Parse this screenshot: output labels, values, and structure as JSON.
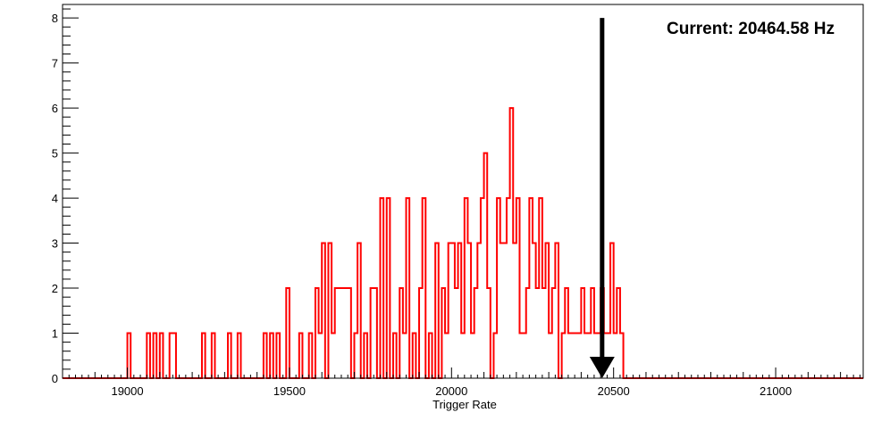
{
  "chart_data": {
    "type": "bar",
    "title": "",
    "xlabel": "Trigger Rate",
    "ylabel": "",
    "xlim": [
      18800,
      21270
    ],
    "ylim": [
      0,
      8.3
    ],
    "x_ticks": [
      19000,
      19500,
      20000,
      20500,
      21000
    ],
    "x_tick_labels": [
      "19000",
      "19500",
      "20000",
      "20500",
      "21000"
    ],
    "y_ticks": [
      0,
      1,
      2,
      3,
      4,
      5,
      6,
      7,
      8
    ],
    "y_tick_labels": [
      "0",
      "1",
      "2",
      "3",
      "4",
      "5",
      "6",
      "7",
      "8"
    ],
    "grid": false,
    "bin_width": 10,
    "series": [
      {
        "color": "#ff0000",
        "bins": [
          [
            19000,
            1
          ],
          [
            19060,
            1
          ],
          [
            19080,
            1
          ],
          [
            19100,
            1
          ],
          [
            19130,
            1
          ],
          [
            19140,
            1
          ],
          [
            19230,
            1
          ],
          [
            19260,
            1
          ],
          [
            19310,
            1
          ],
          [
            19340,
            1
          ],
          [
            19420,
            1
          ],
          [
            19440,
            1
          ],
          [
            19460,
            1
          ],
          [
            19490,
            2
          ],
          [
            19530,
            1
          ],
          [
            19560,
            1
          ],
          [
            19580,
            2
          ],
          [
            19590,
            1
          ],
          [
            19600,
            3
          ],
          [
            19620,
            3
          ],
          [
            19630,
            1
          ],
          [
            19640,
            2
          ],
          [
            19650,
            2
          ],
          [
            19660,
            2
          ],
          [
            19670,
            2
          ],
          [
            19680,
            2
          ],
          [
            19700,
            1
          ],
          [
            19710,
            3
          ],
          [
            19730,
            1
          ],
          [
            19750,
            2
          ],
          [
            19760,
            2
          ],
          [
            19780,
            4
          ],
          [
            19800,
            4
          ],
          [
            19820,
            1
          ],
          [
            19840,
            2
          ],
          [
            19850,
            1
          ],
          [
            19860,
            4
          ],
          [
            19880,
            1
          ],
          [
            19900,
            2
          ],
          [
            19910,
            4
          ],
          [
            19930,
            1
          ],
          [
            19950,
            3
          ],
          [
            19970,
            2
          ],
          [
            19980,
            1
          ],
          [
            19990,
            3
          ],
          [
            20000,
            3
          ],
          [
            20010,
            2
          ],
          [
            20020,
            3
          ],
          [
            20030,
            1
          ],
          [
            20040,
            4
          ],
          [
            20050,
            3
          ],
          [
            20060,
            1
          ],
          [
            20070,
            2
          ],
          [
            20080,
            3
          ],
          [
            20090,
            4
          ],
          [
            20100,
            5
          ],
          [
            20110,
            2
          ],
          [
            20130,
            1
          ],
          [
            20140,
            4
          ],
          [
            20150,
            3
          ],
          [
            20160,
            3
          ],
          [
            20170,
            4
          ],
          [
            20180,
            6
          ],
          [
            20190,
            3
          ],
          [
            20200,
            4
          ],
          [
            20210,
            1
          ],
          [
            20220,
            1
          ],
          [
            20230,
            2
          ],
          [
            20240,
            4
          ],
          [
            20250,
            3
          ],
          [
            20260,
            2
          ],
          [
            20270,
            4
          ],
          [
            20280,
            2
          ],
          [
            20290,
            3
          ],
          [
            20300,
            1
          ],
          [
            20310,
            2
          ],
          [
            20320,
            3
          ],
          [
            20340,
            1
          ],
          [
            20350,
            2
          ],
          [
            20360,
            1
          ],
          [
            20370,
            1
          ],
          [
            20380,
            1
          ],
          [
            20390,
            1
          ],
          [
            20400,
            2
          ],
          [
            20410,
            1
          ],
          [
            20420,
            1
          ],
          [
            20430,
            2
          ],
          [
            20440,
            1
          ],
          [
            20450,
            1
          ],
          [
            20460,
            2
          ],
          [
            20470,
            1
          ],
          [
            20480,
            1
          ],
          [
            20490,
            3
          ],
          [
            20500,
            1
          ],
          [
            20510,
            2
          ],
          [
            20520,
            1
          ]
        ]
      }
    ],
    "annotations": [
      {
        "type": "arrow",
        "x": 20464.58,
        "y_from": 8,
        "y_to": 0,
        "color": "#000000"
      }
    ],
    "annotation_text": "Current: 20464.58 Hz"
  }
}
